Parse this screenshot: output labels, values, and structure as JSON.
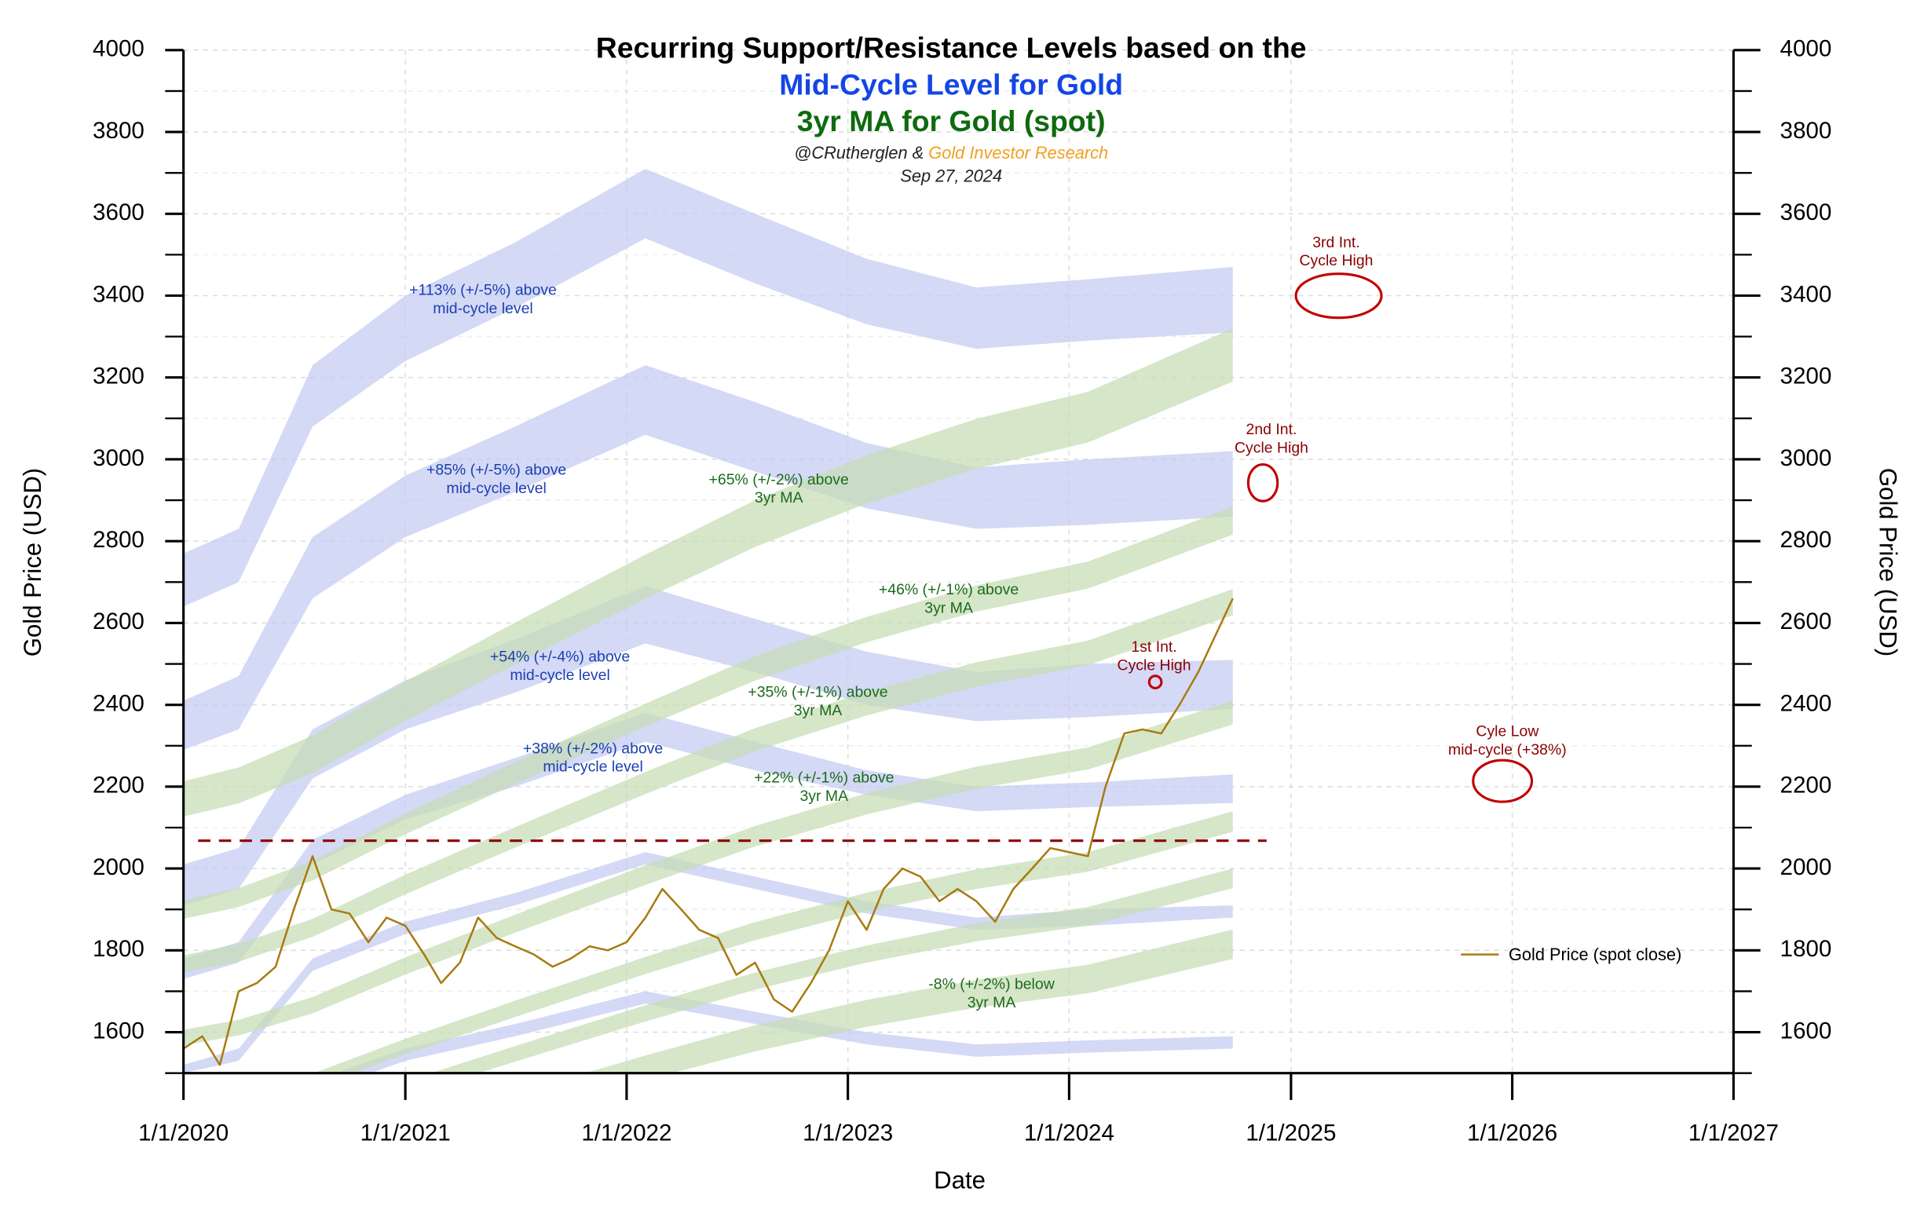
{
  "chart_data": {
    "type": "line",
    "title": "Recurring Support/Resistance Levels based on the",
    "subtitle_1": {
      "text": "Mid-Cycle Level for Gold",
      "color": "#1446e6"
    },
    "subtitle_2": {
      "text": "3yr MA for Gold (spot)",
      "color": "#0f6a0f"
    },
    "credit_author": "@CRutherglen &",
    "credit_org": {
      "text": "Gold Investor Research",
      "color": "#f0a020"
    },
    "date": "Sep 27, 2024",
    "x_label": "Date",
    "y_label": "Gold Price (USD)",
    "y2_label": "Gold Price (USD)",
    "xlim": [
      "2020-01-01",
      "2027-01-01"
    ],
    "xticks": [
      {
        "value": "2020-01-01",
        "label": "1/1/2020"
      },
      {
        "value": "2021-01-01",
        "label": "1/1/2021"
      },
      {
        "value": "2022-01-01",
        "label": "1/1/2022"
      },
      {
        "value": "2023-01-01",
        "label": "1/1/2023"
      },
      {
        "value": "2024-01-01",
        "label": "1/1/2024"
      },
      {
        "value": "2025-01-01",
        "label": "1/1/2025"
      },
      {
        "value": "2026-01-01",
        "label": "1/1/2026"
      },
      {
        "value": "2027-01-01",
        "label": "1/1/2027"
      }
    ],
    "ylim": [
      1500,
      4000
    ],
    "yticks": [
      1600,
      1800,
      2000,
      2200,
      2400,
      2600,
      2800,
      3000,
      3200,
      3400,
      3600,
      3800,
      4000
    ],
    "yticks_minor": [
      1500,
      1700,
      1900,
      2100,
      2300,
      2500,
      2700,
      2900,
      3100,
      3300,
      3500,
      3700,
      3900
    ],
    "y2lim": [
      1500,
      4000
    ],
    "y2ticks": [
      1600,
      1800,
      2000,
      2200,
      2400,
      2600,
      2800,
      3000,
      3200,
      3400,
      3600,
      3800,
      4000
    ],
    "grid": true,
    "legend": "right",
    "x": [
      "2020-01-01",
      "2020-02-01",
      "2020-03-01",
      "2020-04-01",
      "2020-05-01",
      "2020-06-01",
      "2020-07-01",
      "2020-08-01",
      "2020-09-01",
      "2020-10-01",
      "2020-11-01",
      "2020-12-01",
      "2021-01-01",
      "2021-02-01",
      "2021-03-01",
      "2021-04-01",
      "2021-05-01",
      "2021-06-01",
      "2021-07-01",
      "2021-08-01",
      "2021-09-01",
      "2021-10-01",
      "2021-11-01",
      "2021-12-01",
      "2022-01-01",
      "2022-02-01",
      "2022-03-01",
      "2022-04-01",
      "2022-05-01",
      "2022-06-01",
      "2022-07-01",
      "2022-08-01",
      "2022-09-01",
      "2022-10-01",
      "2022-11-01",
      "2022-12-01",
      "2023-01-01",
      "2023-02-01",
      "2023-03-01",
      "2023-04-01",
      "2023-05-01",
      "2023-06-01",
      "2023-07-01",
      "2023-08-01",
      "2023-09-01",
      "2023-10-01",
      "2023-11-01",
      "2023-12-01",
      "2024-01-01",
      "2024-02-01",
      "2024-03-01",
      "2024-04-01",
      "2024-05-01",
      "2024-06-01",
      "2024-07-01",
      "2024-08-01",
      "2024-09-27"
    ],
    "series": [
      {
        "name": "Gold Price (spot close)",
        "color": "#a87a10",
        "values": [
          1560,
          1590,
          1520,
          1700,
          1720,
          1760,
          1900,
          2030,
          1900,
          1890,
          1820,
          1880,
          1860,
          1790,
          1720,
          1770,
          1880,
          1830,
          1810,
          1790,
          1760,
          1780,
          1810,
          1800,
          1820,
          1880,
          1950,
          1900,
          1850,
          1830,
          1740,
          1770,
          1680,
          1650,
          1720,
          1800,
          1920,
          1850,
          1950,
          2000,
          1980,
          1920,
          1950,
          1920,
          1870,
          1950,
          2000,
          2050,
          2040,
          2030,
          2200,
          2330,
          2340,
          2330,
          2400,
          2480,
          2660
        ]
      }
    ],
    "band_x": [
      "2020-01-01",
      "2020-04-01",
      "2020-08-01",
      "2021-01-01",
      "2021-07-01",
      "2022-02-01",
      "2022-08-01",
      "2023-02-01",
      "2023-08-01",
      "2024-02-01",
      "2024-09-27"
    ],
    "bands": [
      {
        "color": "#c3cbf2",
        "lower": [
          2640,
          2700,
          3080,
          3240,
          3370,
          3540,
          3430,
          3330,
          3270,
          3290,
          3310
        ],
        "upper": [
          2770,
          2830,
          3230,
          3400,
          3530,
          3710,
          3600,
          3490,
          3420,
          3440,
          3470
        ]
      },
      {
        "color": "#c3cbf2",
        "lower": [
          2290,
          2340,
          2660,
          2810,
          2920,
          3060,
          2970,
          2880,
          2830,
          2840,
          2860
        ],
        "upper": [
          2410,
          2470,
          2810,
          2960,
          3080,
          3230,
          3140,
          3040,
          2980,
          3000,
          3020
        ]
      },
      {
        "color": "#c3cbf2",
        "lower": [
          1910,
          1950,
          2220,
          2340,
          2430,
          2550,
          2480,
          2400,
          2360,
          2370,
          2390
        ],
        "upper": [
          2010,
          2050,
          2340,
          2460,
          2560,
          2690,
          2610,
          2530,
          2480,
          2500,
          2510
        ]
      },
      {
        "color": "#c3cbf2",
        "lower": [
          1730,
          1770,
          2010,
          2120,
          2200,
          2310,
          2240,
          2180,
          2140,
          2150,
          2160
        ],
        "upper": [
          1780,
          1820,
          2070,
          2180,
          2270,
          2380,
          2310,
          2240,
          2200,
          2210,
          2230
        ]
      },
      {
        "color": "#c3cbf2",
        "lower": [
          1500,
          1530,
          1750,
          1840,
          1910,
          2010,
          1950,
          1890,
          1850,
          1860,
          1880
        ],
        "upper": [
          1520,
          1560,
          1780,
          1870,
          1940,
          2040,
          1980,
          1920,
          1880,
          1900,
          1910
        ]
      },
      {
        "color": "#c3cbf2",
        "lower": [
          1240,
          1270,
          1450,
          1530,
          1590,
          1670,
          1620,
          1570,
          1540,
          1550,
          1560
        ],
        "upper": [
          1270,
          1300,
          1480,
          1560,
          1620,
          1700,
          1650,
          1600,
          1570,
          1580,
          1590
        ]
      },
      {
        "color": "#c6ddb4",
        "lower": [
          2127,
          2159,
          2233,
          2361,
          2499,
          2659,
          2786,
          2892,
          2977,
          3041,
          3190
        ],
        "upper": [
          2213,
          2247,
          2325,
          2457,
          2601,
          2767,
          2900,
          3010,
          3099,
          3165,
          3320
        ]
      },
      {
        "color": "#c6ddb4",
        "lower": [
          1877,
          1906,
          1971,
          2084,
          2206,
          2347,
          2459,
          2553,
          2628,
          2684,
          2816
        ],
        "upper": [
          1923,
          1952,
          2019,
          2134,
          2260,
          2403,
          2519,
          2615,
          2692,
          2750,
          2884
        ]
      },
      {
        "color": "#c6ddb4",
        "lower": [
          1746,
          1772,
          1833,
          1937,
          2051,
          2182,
          2287,
          2374,
          2444,
          2497,
          2619
        ],
        "upper": [
          1788,
          1816,
          1877,
          1985,
          2101,
          2236,
          2343,
          2432,
          2504,
          2557,
          2683
        ]
      },
      {
        "color": "#c6ddb4",
        "lower": [
          1568,
          1592,
          1646,
          1741,
          1843,
          1960,
          2054,
          2132,
          2195,
          2242,
          2352
        ],
        "upper": [
          1606,
          1630,
          1686,
          1783,
          1887,
          2008,
          2104,
          2184,
          2249,
          2296,
          2410
        ]
      },
      {
        "color": "#c6ddb4",
        "lower": [
          1393,
          1414,
          1463,
          1546,
          1637,
          1742,
          1825,
          1895,
          1950,
          1992,
          2090
        ],
        "upper": [
          1427,
          1448,
          1499,
          1584,
          1677,
          1784,
          1869,
          1941,
          1998,
          2040,
          2140
        ]
      },
      {
        "color": "#c6ddb4",
        "lower": [
          1301,
          1321,
          1366,
          1444,
          1528,
          1626,
          1704,
          1770,
          1822,
          1860,
          1952
        ],
        "upper": [
          1333,
          1353,
          1400,
          1480,
          1566,
          1666,
          1746,
          1812,
          1866,
          1906,
          2000
        ]
      },
      {
        "color": "#c6ddb4",
        "lower": [
          1186,
          1203,
          1246,
          1316,
          1394,
          1483,
          1553,
          1613,
          1660,
          1695,
          1779
        ],
        "upper": [
          1234,
          1253,
          1296,
          1370,
          1450,
          1543,
          1617,
          1679,
          1728,
          1765,
          1851
        ]
      }
    ],
    "reference_line": {
      "value": 2068,
      "color": "#8b0000"
    },
    "annotations": [
      {
        "lines": [
          "+113% (+/-5%) above",
          "mid-cycle level"
        ],
        "color": "#1a3fb0"
      },
      {
        "lines": [
          "+85% (+/-5%) above",
          "mid-cycle level"
        ],
        "color": "#1a3fb0"
      },
      {
        "lines": [
          "+54% (+/-4%) above",
          "mid-cycle level"
        ],
        "color": "#1a3fb0"
      },
      {
        "lines": [
          "+38% (+/-2%) above",
          "mid-cycle level"
        ],
        "color": "#1a3fb0"
      },
      {
        "lines": [
          "+65% (+/-2%) above",
          "3yr MA"
        ],
        "color": "#1a6b1a"
      },
      {
        "lines": [
          "+46% (+/-1%) above",
          "3yr MA"
        ],
        "color": "#1a6b1a"
      },
      {
        "lines": [
          "+35% (+/-1%) above",
          "3yr MA"
        ],
        "color": "#1a6b1a"
      },
      {
        "lines": [
          "+22% (+/-1%) above",
          "3yr MA"
        ],
        "color": "#1a6b1a"
      },
      {
        "lines": [
          "-8% (+/-2%) below",
          "3yr MA"
        ],
        "color": "#1a6b1a"
      },
      {
        "lines": [
          "3rd Int.",
          "Cycle High"
        ],
        "color": "#8b0000"
      },
      {
        "lines": [
          "2nd Int.",
          "Cycle High"
        ],
        "color": "#8b0000"
      },
      {
        "lines": [
          "1st Int.",
          "Cycle High"
        ],
        "color": "#8b0000"
      },
      {
        "lines": [
          "Cyle Low",
          "mid-cycle (+38%)"
        ],
        "color": "#8b0000"
      }
    ]
  }
}
